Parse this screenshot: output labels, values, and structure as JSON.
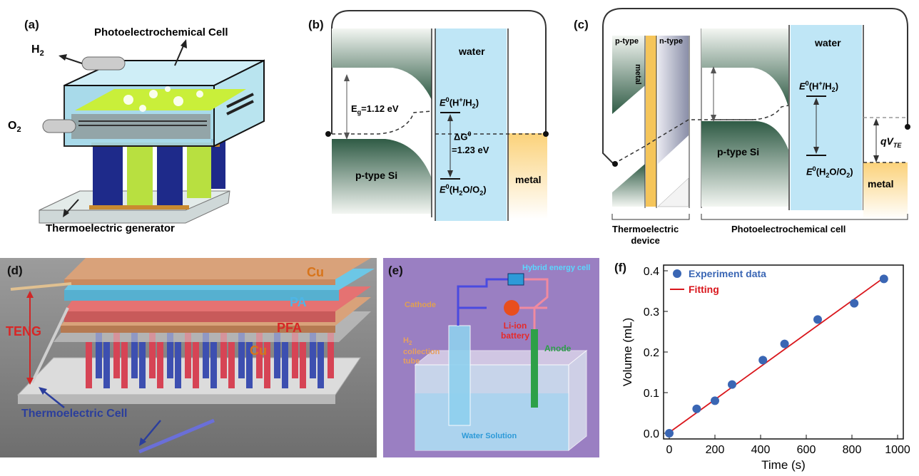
{
  "panel_labels": {
    "a": "(a)",
    "b": "(b)",
    "c": "(c)",
    "d": "(d)",
    "e": "(e)",
    "f": "(f)"
  },
  "panel_a": {
    "cell_label": "Photoelectrochemical Cell",
    "h2": "H",
    "h2_sub": "2",
    "o2": "O",
    "o2_sub": "2",
    "generator_label": "Thermoelectric generator"
  },
  "panel_b": {
    "water": "water",
    "eg": "E",
    "eg_sub": "g",
    "eg_val": "=1.12 eV",
    "e_h": "E",
    "e_h_sup": "0",
    "e_h_rest": "(H",
    "e_h_plus": "+",
    "e_h_end": "/H",
    "e_h_sub": "2",
    "e_h_close": ")",
    "dg": "ΔG",
    "dg_sup": "0",
    "dg_val": "=1.23 eV",
    "e_o": "E",
    "e_o_sup": "0",
    "e_o_rest": "(H",
    "e_o_sub1": "2",
    "e_o_mid": "O/O",
    "e_o_sub2": "2",
    "e_o_close": ")",
    "ptype": "p-type Si",
    "metal": "metal"
  },
  "panel_c": {
    "ptype": "p-type",
    "ntype": "n-type",
    "metal_vert": "metal",
    "water": "water",
    "e_h": "E",
    "e_h_sup": "0",
    "e_h_rest": "(H",
    "e_h_plus": "+",
    "e_h_end": "/H",
    "e_h_sub": "2",
    "e_h_close": ")",
    "qvte": "qV",
    "qvte_sub": "TE",
    "ptype_si": "p-type Si",
    "e_o": "E",
    "e_o_sup": "0",
    "e_o_rest": "(H",
    "e_o_sub1": "2",
    "e_o_mid": "O/O",
    "e_o_sub2": "2",
    "e_o_close": ")",
    "metal": "metal",
    "te_device_1": "Thermoelectric",
    "te_device_2": "device",
    "pec_cell": "Photoelectrochemical cell"
  },
  "panel_d": {
    "cu_top": "Cu",
    "pa": "PA",
    "pfa": "PFA",
    "cu_bottom": "Cu",
    "teng": "TENG",
    "te_cell": "Thermoelectric Cell"
  },
  "panel_e": {
    "hybrid": "Hybrid energy cell",
    "cathode": "Cathode",
    "li1": "Li-ion",
    "li2": "battery",
    "h2": "H",
    "h2_sub": "2",
    "collection": "collection",
    "tube": "tube",
    "anode": "Anode",
    "water_solution": "Water Solution"
  },
  "chart_data": {
    "type": "scatter",
    "xlabel": "Time (s)",
    "ylabel": "Volume (mL)",
    "xlim": [
      0,
      1000
    ],
    "ylim": [
      0.0,
      0.4
    ],
    "xticks": [
      "0",
      "200",
      "400",
      "600",
      "800",
      "1000"
    ],
    "yticks": [
      "0.0",
      "0.1",
      "0.2",
      "0.3",
      "0.4"
    ],
    "series": [
      {
        "name": "Experiment data",
        "x": [
          0,
          120,
          200,
          275,
          410,
          505,
          650,
          810,
          940
        ],
        "y": [
          0.0,
          0.06,
          0.08,
          0.12,
          0.18,
          0.22,
          0.28,
          0.32,
          0.38
        ]
      },
      {
        "name": "Fitting",
        "x": [
          0,
          945
        ],
        "y": [
          0.002,
          0.385
        ]
      }
    ],
    "colors": {
      "points": "#3a66b4",
      "fit": "#d9161c"
    },
    "legend_position": "top-left"
  }
}
